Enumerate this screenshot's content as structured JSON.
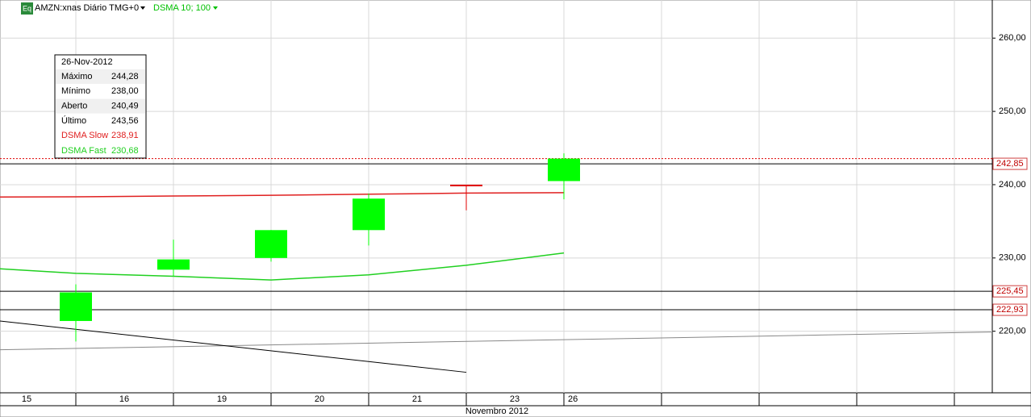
{
  "chart_data": {
    "type": "candlestick",
    "header": {
      "badge": "Eq",
      "symbol": "AMZN:xnas Diário TMG+0",
      "indicator": "DSMA 10; 100"
    },
    "x_title": "Novembro 2012",
    "categories": [
      "15",
      "16",
      "19",
      "20",
      "21",
      "23",
      "26"
    ],
    "open": [
      null,
      221.4,
      228.4,
      230.0,
      233.8,
      240.0,
      240.49
    ],
    "high": [
      null,
      226.4,
      232.5,
      233.8,
      238.8,
      240.0,
      244.28
    ],
    "low": [
      null,
      218.6,
      227.5,
      229.5,
      231.7,
      236.5,
      238.0
    ],
    "close": [
      null,
      225.3,
      229.8,
      233.8,
      238.1,
      239.8,
      243.56
    ],
    "up_color": "#00ff00",
    "down_color": "#e00000",
    "series": [
      {
        "name": "DSMA Slow",
        "color": "#e02020",
        "values": [
          238.3,
          238.35,
          238.45,
          238.55,
          238.7,
          238.85,
          238.91
        ]
      },
      {
        "name": "DSMA Fast",
        "color": "#20d020",
        "values": [
          228.7,
          227.9,
          227.5,
          227.0,
          227.7,
          229.0,
          230.68
        ]
      }
    ],
    "levels": {
      "values": [
        242.85,
        225.45,
        222.93
      ],
      "value_labels": [
        "242,85",
        "225,45",
        "222,93"
      ]
    },
    "last_price": 243.56,
    "trendlines": [
      {
        "color": "#888888",
        "values": [
          217.47,
          219.9
        ]
      },
      {
        "color": "#000000",
        "values": [
          221.4,
          214.4
        ]
      }
    ],
    "ylim": [
      211.6,
      265.2
    ],
    "yticks": [
      {
        "value": 220,
        "label": "220,00"
      },
      {
        "value": 230,
        "label": "230,00"
      },
      {
        "value": 240,
        "label": "240,00"
      },
      {
        "value": 250,
        "label": "250,00"
      },
      {
        "value": 260,
        "label": "260,00"
      }
    ],
    "grid": true,
    "tooltip": {
      "date": "26-Nov-2012",
      "rows": [
        [
          "Máximo",
          "244,28"
        ],
        [
          "Mínimo",
          "238,00"
        ],
        [
          "Aberto",
          "240,49"
        ],
        [
          "Último",
          "243,56"
        ]
      ],
      "indicators": [
        [
          "DSMA Slow",
          "238,91"
        ],
        [
          "DSMA Fast",
          "230,68"
        ]
      ]
    }
  }
}
